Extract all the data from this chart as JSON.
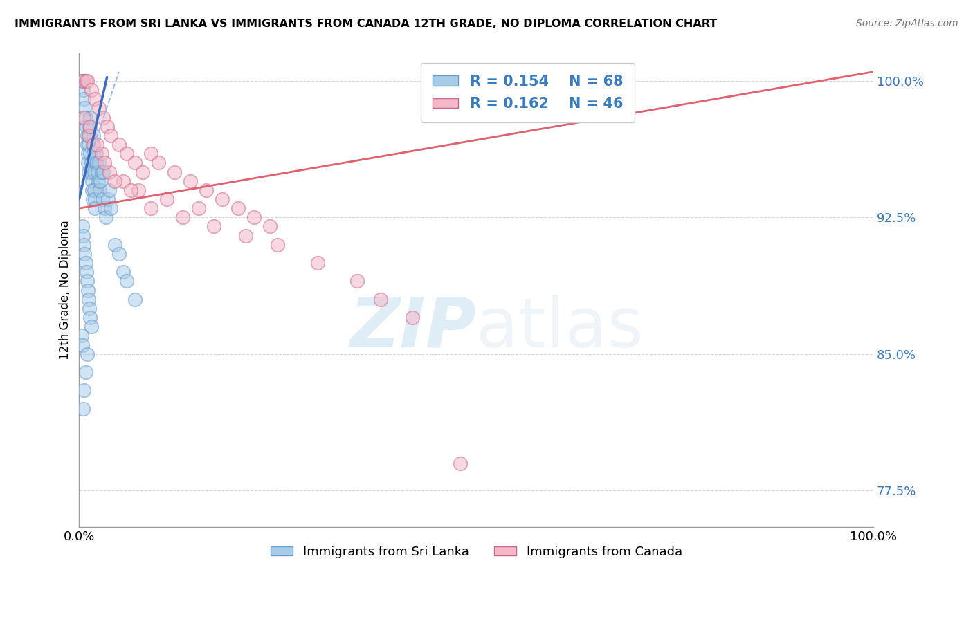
{
  "title": "IMMIGRANTS FROM SRI LANKA VS IMMIGRANTS FROM CANADA 12TH GRADE, NO DIPLOMA CORRELATION CHART",
  "source": "Source: ZipAtlas.com",
  "ylabel": "12th Grade, No Diploma",
  "x_min": 0.0,
  "x_max": 100.0,
  "y_min": 75.5,
  "y_max": 101.5,
  "y_ticks": [
    77.5,
    85.0,
    92.5,
    100.0
  ],
  "x_tick_labels": [
    "0.0%",
    "100.0%"
  ],
  "y_tick_labels": [
    "77.5%",
    "85.0%",
    "92.5%",
    "100.0%"
  ],
  "sri_lanka_color": "#a8cce8",
  "canada_color": "#f4b8c8",
  "sri_lanka_line_color": "#3a6bbf",
  "sri_lanka_line_dashed_color": "#a0b8e0",
  "canada_line_color": "#e06070",
  "legend_R_sri_lanka": "0.154",
  "legend_N_sri_lanka": "68",
  "legend_R_canada": "0.162",
  "legend_N_canada": "46",
  "legend_label_sri_lanka": "Immigrants from Sri Lanka",
  "legend_label_canada": "Immigrants from Canada",
  "watermark_zip": "ZIP",
  "watermark_atlas": "atlas",
  "sri_lanka_x": [
    0.3,
    0.5,
    0.5,
    0.6,
    0.7,
    0.8,
    0.9,
    1.0,
    1.0,
    1.1,
    1.1,
    1.2,
    1.2,
    1.3,
    1.3,
    1.4,
    1.4,
    1.5,
    1.5,
    1.6,
    1.6,
    1.7,
    1.7,
    1.8,
    1.8,
    1.9,
    1.9,
    2.0,
    2.0,
    2.1,
    2.1,
    2.2,
    2.3,
    2.4,
    2.5,
    2.6,
    2.7,
    2.8,
    2.9,
    3.0,
    3.2,
    3.4,
    3.6,
    3.8,
    4.0,
    4.5,
    5.0,
    5.5,
    6.0,
    7.0,
    0.4,
    0.5,
    0.6,
    0.7,
    0.8,
    0.9,
    1.0,
    1.1,
    1.2,
    1.3,
    1.4,
    1.5,
    0.3,
    0.4,
    1.0,
    0.8,
    0.6,
    0.5
  ],
  "sri_lanka_y": [
    100.0,
    100.0,
    99.5,
    99.0,
    98.5,
    98.0,
    97.5,
    97.0,
    96.5,
    96.0,
    95.5,
    95.0,
    96.5,
    97.0,
    97.5,
    98.0,
    96.0,
    95.5,
    95.0,
    94.5,
    94.0,
    93.5,
    96.5,
    97.0,
    96.0,
    95.0,
    94.0,
    93.5,
    93.0,
    95.5,
    96.0,
    95.5,
    95.0,
    94.5,
    95.5,
    94.0,
    94.5,
    95.0,
    93.5,
    95.0,
    93.0,
    92.5,
    93.5,
    94.0,
    93.0,
    91.0,
    90.5,
    89.5,
    89.0,
    88.0,
    92.0,
    91.5,
    91.0,
    90.5,
    90.0,
    89.5,
    89.0,
    88.5,
    88.0,
    87.5,
    87.0,
    86.5,
    86.0,
    85.5,
    85.0,
    84.0,
    83.0,
    82.0
  ],
  "canada_x": [
    0.5,
    0.8,
    1.0,
    1.5,
    2.0,
    2.5,
    3.0,
    3.5,
    4.0,
    5.0,
    6.0,
    7.0,
    8.0,
    9.0,
    10.0,
    12.0,
    14.0,
    16.0,
    18.0,
    20.0,
    22.0,
    24.0,
    1.2,
    1.8,
    2.8,
    3.8,
    5.5,
    7.5,
    11.0,
    15.0,
    0.6,
    1.4,
    2.2,
    3.2,
    4.5,
    6.5,
    9.0,
    13.0,
    17.0,
    21.0,
    25.0,
    30.0,
    35.0,
    38.0,
    42.0,
    48.0
  ],
  "canada_y": [
    100.0,
    100.0,
    100.0,
    99.5,
    99.0,
    98.5,
    98.0,
    97.5,
    97.0,
    96.5,
    96.0,
    95.5,
    95.0,
    96.0,
    95.5,
    95.0,
    94.5,
    94.0,
    93.5,
    93.0,
    92.5,
    92.0,
    97.0,
    96.5,
    96.0,
    95.0,
    94.5,
    94.0,
    93.5,
    93.0,
    98.0,
    97.5,
    96.5,
    95.5,
    94.5,
    94.0,
    93.0,
    92.5,
    92.0,
    91.5,
    91.0,
    90.0,
    89.0,
    88.0,
    87.0,
    79.0
  ],
  "sl_trendline_x": [
    0,
    100
  ],
  "sl_trendline_y": [
    94.8,
    96.0
  ],
  "ca_trendline_x": [
    0,
    100
  ],
  "ca_trendline_y": [
    93.0,
    100.5
  ]
}
